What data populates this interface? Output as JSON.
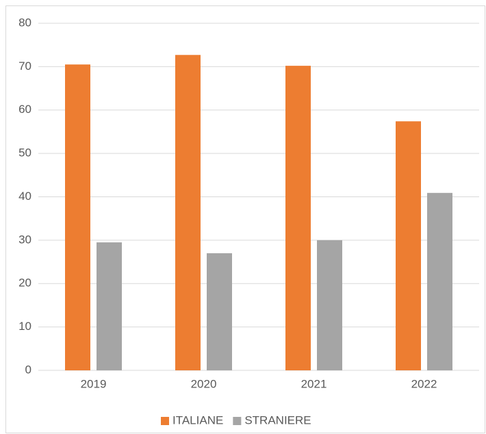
{
  "chart_data": {
    "type": "bar",
    "categories": [
      "2019",
      "2020",
      "2021",
      "2022"
    ],
    "series": [
      {
        "name": "ITALIANE",
        "color": "#ED7D31",
        "values": [
          70.5,
          72.7,
          70.2,
          57.4
        ]
      },
      {
        "name": "STRANIERE",
        "color": "#A5A5A5",
        "values": [
          29.5,
          27.0,
          30.0,
          40.9
        ]
      }
    ],
    "ylim": [
      0,
      80
    ],
    "yticks": [
      0,
      10,
      20,
      30,
      40,
      50,
      60,
      70,
      80
    ],
    "grid": true,
    "legend": "bottom"
  }
}
